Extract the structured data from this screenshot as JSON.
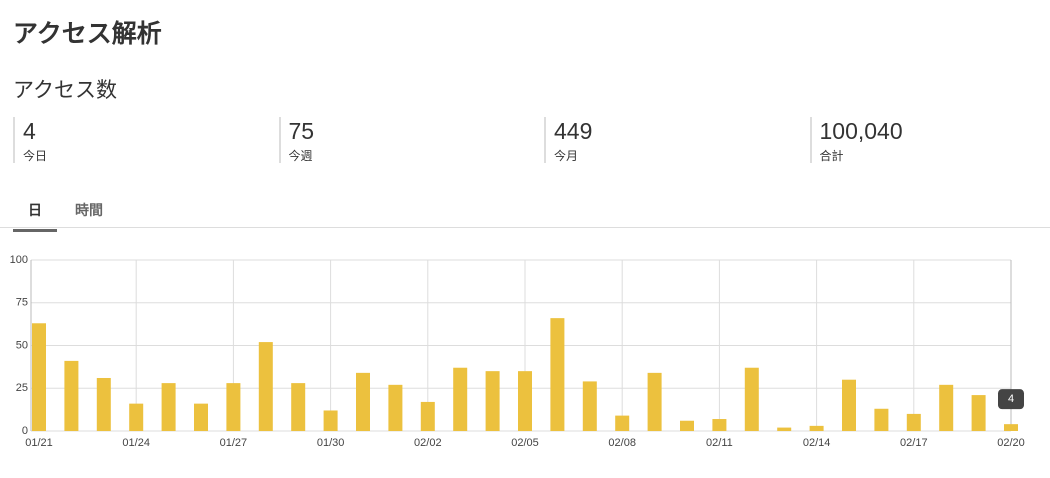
{
  "header": {
    "title": "アクセス解析"
  },
  "section": {
    "title": "アクセス数"
  },
  "stats": [
    {
      "value": "4",
      "label": "今日"
    },
    {
      "value": "75",
      "label": "今週"
    },
    {
      "value": "449",
      "label": "今月"
    },
    {
      "value": "100,040",
      "label": "合計"
    }
  ],
  "tabs": [
    "日",
    "時間"
  ],
  "chart_data": {
    "type": "bar",
    "categories": [
      "01/21",
      null,
      null,
      "01/24",
      null,
      null,
      "01/27",
      null,
      null,
      "01/30",
      null,
      null,
      "02/02",
      null,
      null,
      "02/05",
      null,
      null,
      "02/08",
      null,
      null,
      "02/11",
      null,
      null,
      "02/14",
      null,
      null,
      "02/17",
      null,
      null,
      "02/20"
    ],
    "values": [
      63,
      41,
      31,
      16,
      28,
      16,
      28,
      52,
      28,
      12,
      34,
      27,
      17,
      37,
      35,
      35,
      66,
      29,
      9,
      34,
      6,
      7,
      37,
      2,
      3,
      30,
      13,
      10,
      27,
      21,
      4
    ],
    "color": "#ecc13e",
    "ylim": [
      0,
      100
    ],
    "yticks": [
      0,
      25,
      50,
      75,
      100
    ],
    "grid": true
  }
}
